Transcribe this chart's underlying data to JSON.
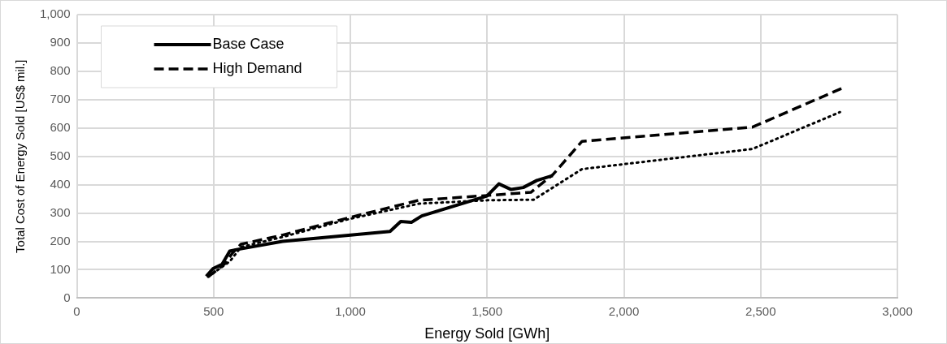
{
  "chart_data": {
    "type": "line",
    "xlabel": "Energy Sold [GWh]",
    "ylabel": "Total Cost of Energy Sold [US$ mil.]",
    "xlim": [
      0,
      3000
    ],
    "xticks": [
      0,
      {
        "value": 500,
        "label": "500"
      },
      {
        "value": 1000,
        "label": "1,000"
      },
      {
        "value": 1500,
        "label": "1,500"
      },
      {
        "value": 2000,
        "label": "2,000"
      },
      {
        "value": 2500,
        "label": "2,500"
      },
      {
        "value": 3000,
        "label": "3,000"
      }
    ],
    "ylim": [
      0,
      1000
    ],
    "yticks": [
      0,
      100,
      200,
      300,
      400,
      500,
      600,
      700,
      800,
      900,
      {
        "value": 1000,
        "label": "1,000"
      }
    ],
    "grid": true,
    "legend": "top left",
    "marker": "none",
    "series": [
      {
        "name": "Base Case",
        "color": "#000000",
        "line_style": "solid",
        "x": [
          473,
          498,
          531,
          559,
          584,
          752,
          1145,
          1184,
          1223,
          1261,
          1499,
          1543,
          1588,
          1632,
          1682,
          1740
        ],
        "values": [
          77,
          104,
          119,
          166,
          171,
          200,
          235,
          270,
          267,
          290,
          360,
          403,
          383,
          390,
          415,
          432
        ]
      },
      {
        "name": "High Demand",
        "color": "#000000",
        "line_style": "dashed",
        "x": [
          480,
          540,
          570,
          600,
          750,
          1000,
          1250,
          1500,
          1660,
          1740,
          1847,
          2470,
          2804
        ],
        "values": [
          75,
          120,
          160,
          190,
          222,
          285,
          345,
          362,
          373,
          435,
          553,
          603,
          743
        ]
      },
      {
        "color": "#000000",
        "line_style": "dotted",
        "x": [
          480,
          560,
          600,
          750,
          1000,
          1250,
          1500,
          1670,
          1847,
          2470,
          2790
        ],
        "values": [
          75,
          130,
          180,
          215,
          280,
          333,
          345,
          347,
          455,
          526,
          656
        ]
      }
    ]
  }
}
